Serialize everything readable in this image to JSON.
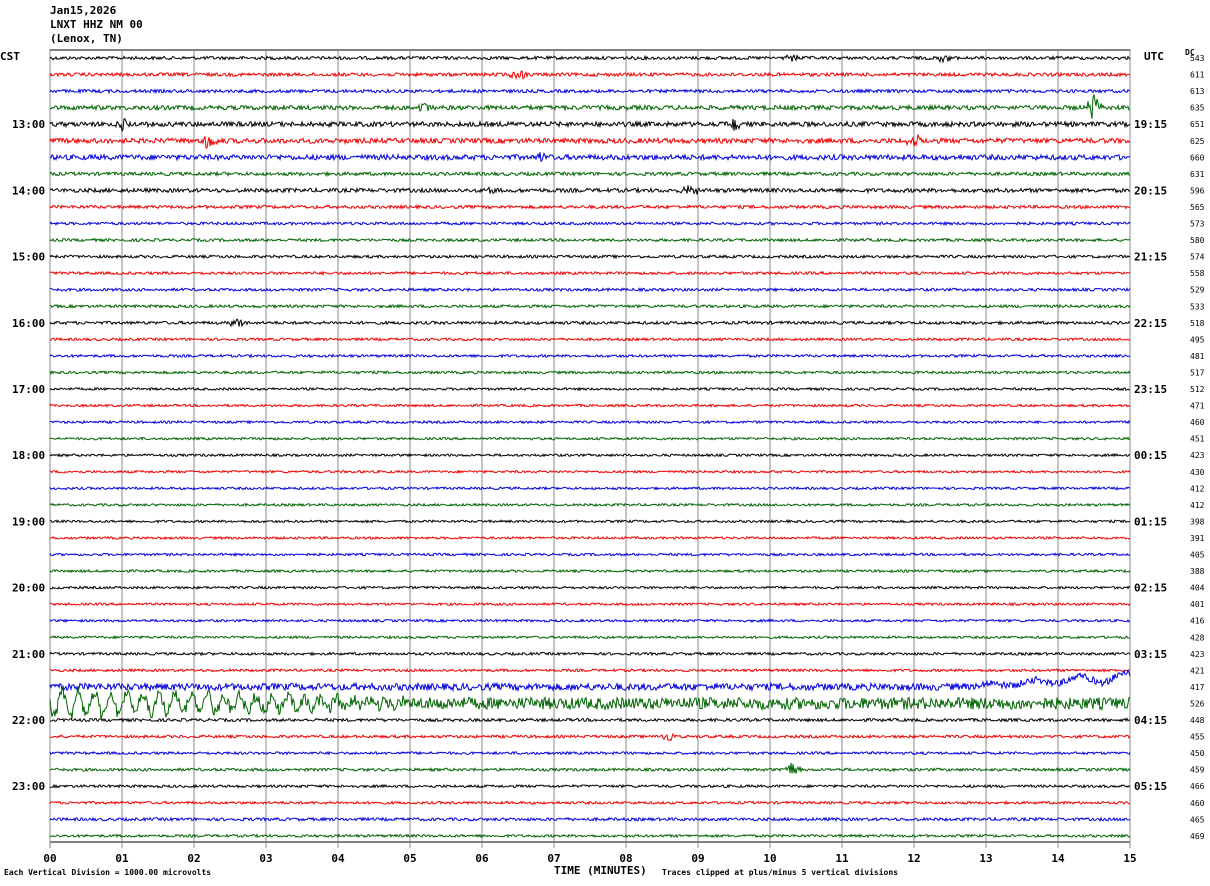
{
  "header": {
    "date": "Jan15,2026",
    "station": "LNXT HHZ NM 00",
    "location": "(Lenox, TN)"
  },
  "left_axis_title": "CST",
  "right_axis_title": "UTC",
  "dc_label": "DC",
  "footer": {
    "scale_note": "Each Vertical Division = 1000.00 microvolts",
    "clip_note": "Traces clipped at plus/minus 5 vertical divisions",
    "x_title": "TIME (MINUTES)"
  },
  "chart_data": {
    "type": "line",
    "title": "",
    "xlabel": "TIME (MINUTES)",
    "xlim": [
      0,
      15
    ],
    "x_ticks": [
      "00",
      "01",
      "02",
      "03",
      "04",
      "05",
      "06",
      "07",
      "08",
      "09",
      "10",
      "11",
      "12",
      "13",
      "14",
      "15"
    ],
    "line_colors": [
      "#000000",
      "#ee0000",
      "#0000dd",
      "#006400"
    ],
    "left_time_labels": [
      "13:00",
      "14:00",
      "15:00",
      "16:00",
      "17:00",
      "18:00",
      "19:00",
      "20:00",
      "21:00",
      "22:00",
      "23:00"
    ],
    "right_time_labels": [
      "19:15",
      "20:15",
      "21:15",
      "22:15",
      "23:15",
      "00:15",
      "01:15",
      "02:15",
      "03:15",
      "04:15",
      "05:15"
    ],
    "dc_offsets": [
      543,
      611,
      613,
      635,
      651,
      625,
      660,
      631,
      596,
      565,
      573,
      580,
      574,
      558,
      529,
      533,
      518,
      495,
      481,
      517,
      512,
      471,
      460,
      451,
      423,
      430,
      412,
      412,
      398,
      391,
      405,
      388,
      404,
      401,
      416,
      428,
      423,
      421,
      417,
      526,
      448,
      455,
      450,
      459,
      466,
      460,
      465,
      469
    ],
    "amplitude_levels": [
      1.6,
      1.7,
      1.6,
      2.2,
      2.4,
      2.5,
      2.6,
      1.7,
      2.0,
      1.6,
      1.4,
      1.4,
      1.4,
      1.4,
      1.4,
      1.4,
      1.5,
      1.3,
      1.3,
      1.3,
      1.2,
      1.2,
      1.2,
      1.2,
      1.2,
      1.2,
      1.2,
      1.2,
      1.2,
      1.2,
      1.2,
      1.2,
      1.2,
      1.2,
      1.2,
      1.2,
      1.3,
      1.3,
      3.5,
      6.0,
      1.5,
      1.4,
      1.3,
      1.4,
      1.3,
      1.3,
      1.5,
      1.3
    ],
    "events": [
      {
        "trace": 0,
        "minute": 10.3,
        "amp": 4
      },
      {
        "trace": 0,
        "minute": 12.4,
        "amp": 4
      },
      {
        "trace": 1,
        "minute": 6.5,
        "amp": 6
      },
      {
        "trace": 3,
        "minute": 5.2,
        "amp": 6
      },
      {
        "trace": 3,
        "minute": 14.5,
        "amp": 14
      },
      {
        "trace": 4,
        "minute": 1.0,
        "amp": 6
      },
      {
        "trace": 4,
        "minute": 9.5,
        "amp": 6
      },
      {
        "trace": 5,
        "minute": 2.2,
        "amp": 8
      },
      {
        "trace": 5,
        "minute": 12.0,
        "amp": 8
      },
      {
        "trace": 6,
        "minute": 6.8,
        "amp": 5
      },
      {
        "trace": 8,
        "minute": 8.9,
        "amp": 7
      },
      {
        "trace": 8,
        "minute": 6.1,
        "amp": 4
      },
      {
        "trace": 16,
        "minute": 2.6,
        "amp": 5
      },
      {
        "trace": 43,
        "minute": 10.3,
        "amp": 8
      },
      {
        "trace": 41,
        "minute": 8.6,
        "amp": 5
      }
    ]
  }
}
